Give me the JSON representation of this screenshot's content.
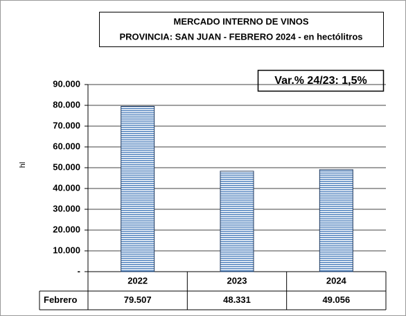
{
  "chart_data": {
    "type": "bar",
    "title": "MERCADO INTERNO DE VINOS",
    "subtitle": "PROVINCIA: SAN JUAN - FEBRERO 2024 - en hectólitros",
    "annotation": "Var.% 24/23: 1,5%",
    "y_label": "hl",
    "categories": [
      "2022",
      "2023",
      "2024"
    ],
    "series": [
      {
        "name": "Febrero",
        "color": "#4f81bd",
        "values": [
          79507,
          48331,
          49056
        ],
        "value_labels": [
          "79.507",
          "48.331",
          "49.056"
        ]
      }
    ],
    "ylim": [
      0,
      90000
    ],
    "yticks": [
      {
        "value": 0,
        "label": "-"
      },
      {
        "value": 10000,
        "label": "10.000"
      },
      {
        "value": 20000,
        "label": "20.000"
      },
      {
        "value": 30000,
        "label": "30.000"
      },
      {
        "value": 40000,
        "label": "40.000"
      },
      {
        "value": 50000,
        "label": "50.000"
      },
      {
        "value": 60000,
        "label": "60.000"
      },
      {
        "value": 70000,
        "label": "70.000"
      },
      {
        "value": 80000,
        "label": "80.000"
      },
      {
        "value": 90000,
        "label": "90.000"
      }
    ],
    "grid": true
  }
}
